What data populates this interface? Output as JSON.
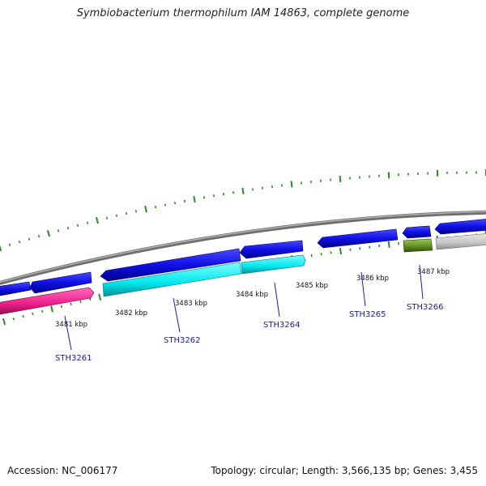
{
  "title": "Symbiobacterium thermophilum IAM 14863, complete genome",
  "footer": {
    "accession": "Accession: NC_006177",
    "summary": "Topology: circular; Length: 3,566,135 bp; Genes: 3,455"
  },
  "colors": {
    "backbone": "#8a8a8a",
    "ticks": "#2a8a2a",
    "gene_blue": "#1010e6",
    "gene_cyan": "#00e8ee",
    "gene_magenta": "#ee1c8a",
    "gene_olive": "#5f8c1e",
    "gene_grey": "#c4c4c4",
    "label_blue": "#1a1aa8",
    "leader": "#1a1aa8"
  },
  "kbp_labels": [
    {
      "id": "3481",
      "text": "3481 kbp"
    },
    {
      "id": "3482",
      "text": "3482 kbp"
    },
    {
      "id": "3483",
      "text": "3483 kbp"
    },
    {
      "id": "3484",
      "text": "3484 kbp"
    },
    {
      "id": "3485",
      "text": "3485 kbp"
    },
    {
      "id": "3486",
      "text": "3486 kbp"
    },
    {
      "id": "3487",
      "text": "3487 kbp"
    }
  ],
  "gene_labels": [
    {
      "id": "sth3261",
      "text": "STH3261"
    },
    {
      "id": "sth3262",
      "text": "STH3262"
    },
    {
      "id": "sth3264",
      "text": "STH3264"
    },
    {
      "id": "sth3265",
      "text": "STH3265"
    },
    {
      "id": "sth3266",
      "text": "STH3266"
    }
  ]
}
